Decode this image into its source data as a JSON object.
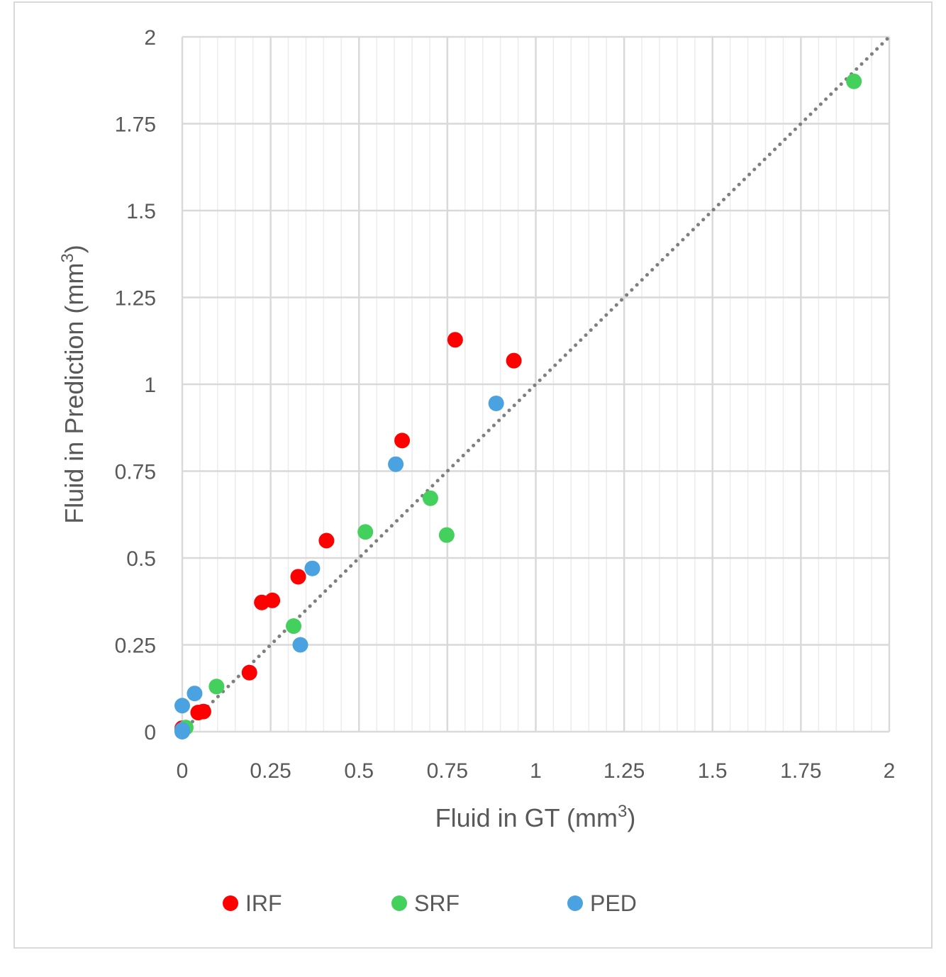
{
  "chart_data": {
    "type": "scatter",
    "title": "",
    "xlabel": "Fluid in GT (mm",
    "xlabel_sup": "3",
    "xlabel_end": ")",
    "ylabel": "Fluid in Prediction (mm",
    "ylabel_sup": "3",
    "ylabel_end": ")",
    "xlim": [
      0,
      2
    ],
    "ylim": [
      0,
      2
    ],
    "major_ticks": [
      0,
      0.25,
      0.5,
      0.75,
      1,
      1.25,
      1.5,
      1.75,
      2
    ],
    "x_tick_labels": [
      "0",
      "0.25",
      "0.5",
      "0.75",
      "1",
      "1.25",
      "1.5",
      "1.75",
      "2"
    ],
    "y_tick_labels": [
      "0",
      "0.25",
      "0.5",
      "0.75",
      "1",
      "1.25",
      "1.5",
      "1.75",
      "2"
    ],
    "minor_step": 0.05,
    "grid": true,
    "legend_position": "bottom",
    "reference_line": {
      "style": "dotted",
      "from": [
        0,
        0
      ],
      "to": [
        2,
        2
      ],
      "color": "#7f7f7f"
    },
    "series": [
      {
        "name": "IRF",
        "color": "#ff0000",
        "points": [
          [
            0,
            0.01
          ],
          [
            0.045,
            0.055
          ],
          [
            0.06,
            0.058
          ],
          [
            0.19,
            0.17
          ],
          [
            0.225,
            0.372
          ],
          [
            0.255,
            0.378
          ],
          [
            0.328,
            0.446
          ],
          [
            0.408,
            0.55
          ],
          [
            0.622,
            0.838
          ],
          [
            0.772,
            1.128
          ],
          [
            0.938,
            1.068
          ]
        ]
      },
      {
        "name": "SRF",
        "color": "#44d05c",
        "points": [
          [
            0.01,
            0.012
          ],
          [
            0.097,
            0.13
          ],
          [
            0.315,
            0.304
          ],
          [
            0.518,
            0.575
          ],
          [
            0.702,
            0.672
          ],
          [
            0.748,
            0.566
          ],
          [
            1.9,
            1.872
          ]
        ]
      },
      {
        "name": "PED",
        "color": "#4aa3e0",
        "points": [
          [
            0,
            0
          ],
          [
            0,
            0.005
          ],
          [
            0,
            0.075
          ],
          [
            0.035,
            0.11
          ],
          [
            0.334,
            0.25
          ],
          [
            0.368,
            0.47
          ],
          [
            0.604,
            0.77
          ],
          [
            0.888,
            0.945
          ]
        ]
      }
    ]
  }
}
